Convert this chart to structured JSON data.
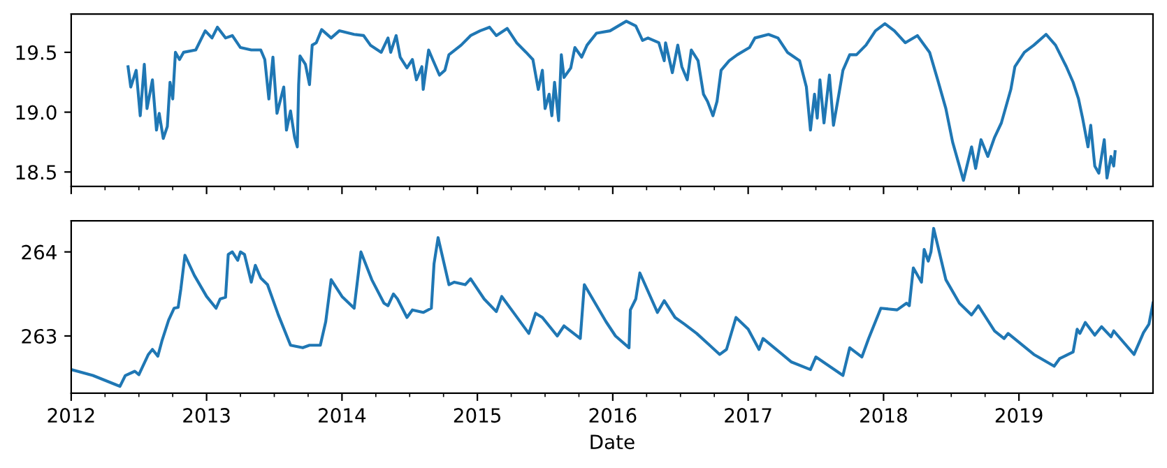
{
  "chart_data": [
    {
      "type": "line",
      "tick_labels": "y",
      "xlim": [
        2012,
        2019.99
      ],
      "ylim": [
        18.38,
        19.82
      ],
      "xticks": [
        2012,
        {
          "value": 2012.25,
          "label": null
        },
        {
          "value": 2012.5,
          "label": null
        },
        {
          "value": 2012.75,
          "label": null
        },
        2013,
        {
          "value": 2013.25,
          "label": null
        },
        {
          "value": 2013.5,
          "label": null
        },
        {
          "value": 2013.75,
          "label": null
        },
        2014,
        {
          "value": 2014.25,
          "label": null
        },
        {
          "value": 2014.5,
          "label": null
        },
        {
          "value": 2014.75,
          "label": null
        },
        2015,
        {
          "value": 2015.25,
          "label": null
        },
        {
          "value": 2015.5,
          "label": null
        },
        {
          "value": 2015.75,
          "label": null
        },
        2016,
        {
          "value": 2016.25,
          "label": null
        },
        {
          "value": 2016.5,
          "label": null
        },
        {
          "value": 2016.75,
          "label": null
        },
        2017,
        {
          "value": 2017.25,
          "label": null
        },
        {
          "value": 2017.5,
          "label": null
        },
        {
          "value": 2017.75,
          "label": null
        },
        2018,
        {
          "value": 2018.25,
          "label": null
        },
        {
          "value": 2018.5,
          "label": null
        },
        {
          "value": 2018.75,
          "label": null
        },
        2019,
        {
          "value": 2019.25,
          "label": null
        },
        {
          "value": 2019.5,
          "label": null
        },
        {
          "value": 2019.75,
          "label": null
        }
      ],
      "yticks": [
        18.5,
        {
          "value": 19.0,
          "label": "19.0"
        },
        19.5
      ],
      "series": [
        {
          "color": "#1f77b4",
          "x": [
            2012.42,
            2012.44,
            2012.48,
            2012.51,
            2012.54,
            2012.56,
            2012.6,
            2012.63,
            2012.65,
            2012.68,
            2012.71,
            2012.73,
            2012.75,
            2012.77,
            2012.8,
            2012.83,
            2012.92,
            2012.99,
            2013.04,
            2013.08,
            2013.14,
            2013.19,
            2013.25,
            2013.33,
            2013.4,
            2013.43,
            2013.46,
            2013.49,
            2013.52,
            2013.57,
            2013.59,
            2013.62,
            2013.65,
            2013.67,
            2013.68,
            2013.69,
            2013.73,
            2013.76,
            2013.78,
            2013.81,
            2013.85,
            2013.92,
            2013.98,
            2014.09,
            2014.16,
            2014.21,
            2014.29,
            2014.34,
            2014.36,
            2014.4,
            2014.43,
            2014.48,
            2014.52,
            2014.55,
            2014.59,
            2014.6,
            2014.64,
            2014.67,
            2014.72,
            2014.76,
            2014.79,
            2014.88,
            2014.95,
            2015.02,
            2015.09,
            2015.14,
            2015.22,
            2015.29,
            2015.36,
            2015.41,
            2015.45,
            2015.48,
            2015.5,
            2015.53,
            2015.55,
            2015.57,
            2015.6,
            2015.62,
            2015.64,
            2015.69,
            2015.72,
            2015.77,
            2015.81,
            2015.88,
            2015.98,
            2016.1,
            2016.17,
            2016.22,
            2016.26,
            2016.34,
            2016.38,
            2016.39,
            2016.44,
            2016.48,
            2016.51,
            2016.55,
            2016.58,
            2016.63,
            2016.67,
            2016.7,
            2016.74,
            2016.77,
            2016.8,
            2016.86,
            2016.92,
            2017.01,
            2017.05,
            2017.15,
            2017.22,
            2017.29,
            2017.38,
            2017.43,
            2017.46,
            2017.49,
            2017.51,
            2017.53,
            2017.56,
            2017.6,
            2017.63,
            2017.67,
            2017.7,
            2017.75,
            2017.8,
            2017.87,
            2017.94,
            2018.01,
            2018.08,
            2018.16,
            2018.25,
            2018.34,
            2018.4,
            2018.46,
            2018.51,
            2018.56,
            2018.59,
            2018.65,
            2018.68,
            2018.72,
            2018.77,
            2018.82,
            2018.87,
            2018.94,
            2018.97,
            2019.04,
            2019.11,
            2019.2,
            2019.27,
            2019.35,
            2019.4,
            2019.44,
            2019.47,
            2019.51,
            2019.53,
            2019.56,
            2019.59,
            2019.63,
            2019.65,
            2019.68,
            2019.7,
            2019.71
          ],
          "values": [
            19.38,
            19.21,
            19.35,
            18.97,
            19.4,
            19.03,
            19.27,
            18.85,
            18.99,
            18.78,
            18.88,
            19.25,
            19.11,
            19.5,
            19.44,
            19.5,
            19.52,
            19.68,
            19.62,
            19.71,
            19.62,
            19.64,
            19.54,
            19.52,
            19.52,
            19.44,
            19.11,
            19.46,
            18.99,
            19.21,
            18.85,
            19.01,
            18.79,
            18.71,
            19.23,
            19.47,
            19.4,
            19.23,
            19.56,
            19.58,
            19.69,
            19.62,
            19.68,
            19.65,
            19.64,
            19.56,
            19.5,
            19.62,
            19.5,
            19.64,
            19.46,
            19.37,
            19.44,
            19.27,
            19.38,
            19.19,
            19.52,
            19.44,
            19.31,
            19.35,
            19.48,
            19.56,
            19.64,
            19.68,
            19.71,
            19.64,
            19.7,
            19.58,
            19.5,
            19.44,
            19.19,
            19.35,
            19.03,
            19.15,
            18.97,
            19.25,
            18.93,
            19.48,
            19.29,
            19.37,
            19.54,
            19.46,
            19.56,
            19.66,
            19.68,
            19.76,
            19.72,
            19.6,
            19.62,
            19.58,
            19.43,
            19.58,
            19.33,
            19.56,
            19.38,
            19.27,
            19.52,
            19.43,
            19.15,
            19.09,
            18.97,
            19.09,
            19.35,
            19.43,
            19.48,
            19.54,
            19.62,
            19.65,
            19.62,
            19.5,
            19.43,
            19.21,
            18.85,
            19.15,
            18.95,
            19.27,
            18.91,
            19.31,
            18.89,
            19.15,
            19.35,
            19.48,
            19.48,
            19.56,
            19.68,
            19.74,
            19.68,
            19.58,
            19.64,
            19.5,
            19.27,
            19.03,
            18.75,
            18.55,
            18.43,
            18.71,
            18.53,
            18.77,
            18.63,
            18.79,
            18.91,
            19.19,
            19.38,
            19.5,
            19.56,
            19.65,
            19.56,
            19.38,
            19.25,
            19.11,
            18.95,
            18.71,
            18.89,
            18.55,
            18.49,
            18.77,
            18.45,
            18.63,
            18.55,
            18.67
          ]
        }
      ]
    },
    {
      "type": "line",
      "xlabel": "Date",
      "xlim": [
        2012,
        2019.99
      ],
      "ylim": [
        262.32,
        264.37
      ],
      "xticks": [
        2012,
        {
          "value": 2012.25,
          "label": null
        },
        {
          "value": 2012.5,
          "label": null
        },
        {
          "value": 2012.75,
          "label": null
        },
        2013,
        {
          "value": 2013.25,
          "label": null
        },
        {
          "value": 2013.5,
          "label": null
        },
        {
          "value": 2013.75,
          "label": null
        },
        2014,
        {
          "value": 2014.25,
          "label": null
        },
        {
          "value": 2014.5,
          "label": null
        },
        {
          "value": 2014.75,
          "label": null
        },
        2015,
        {
          "value": 2015.25,
          "label": null
        },
        {
          "value": 2015.5,
          "label": null
        },
        {
          "value": 2015.75,
          "label": null
        },
        2016,
        {
          "value": 2016.25,
          "label": null
        },
        {
          "value": 2016.5,
          "label": null
        },
        {
          "value": 2016.75,
          "label": null
        },
        2017,
        {
          "value": 2017.25,
          "label": null
        },
        {
          "value": 2017.5,
          "label": null
        },
        {
          "value": 2017.75,
          "label": null
        },
        2018,
        {
          "value": 2018.25,
          "label": null
        },
        {
          "value": 2018.5,
          "label": null
        },
        {
          "value": 2018.75,
          "label": null
        },
        2019,
        {
          "value": 2019.25,
          "label": null
        },
        {
          "value": 2019.5,
          "label": null
        },
        {
          "value": 2019.75,
          "label": null
        }
      ],
      "yticks": [
        263,
        264
      ],
      "series": [
        {
          "color": "#1f77b4",
          "x": [
            2012.0,
            2012.16,
            2012.33,
            2012.36,
            2012.4,
            2012.47,
            2012.5,
            2012.57,
            2012.6,
            2012.64,
            2012.67,
            2012.72,
            2012.76,
            2012.79,
            2012.81,
            2012.84,
            2012.91,
            2013.0,
            2013.07,
            2013.1,
            2013.14,
            2013.16,
            2013.19,
            2013.23,
            2013.25,
            2013.28,
            2013.33,
            2013.36,
            2013.4,
            2013.45,
            2013.53,
            2013.62,
            2013.71,
            2013.76,
            2013.84,
            2013.88,
            2013.92,
            2014.0,
            2014.09,
            2014.14,
            2014.22,
            2014.31,
            2014.34,
            2014.38,
            2014.41,
            2014.48,
            2014.52,
            2014.6,
            2014.66,
            2014.68,
            2014.71,
            2014.79,
            2014.83,
            2014.91,
            2014.95,
            2015.05,
            2015.14,
            2015.18,
            2015.28,
            2015.38,
            2015.43,
            2015.48,
            2015.59,
            2015.64,
            2015.76,
            2015.79,
            2015.95,
            2016.02,
            2016.12,
            2016.13,
            2016.17,
            2016.2,
            2016.33,
            2016.38,
            2016.46,
            2016.53,
            2016.62,
            2016.79,
            2016.84,
            2016.91,
            2017.0,
            2017.08,
            2017.11,
            2017.32,
            2017.46,
            2017.5,
            2017.7,
            2017.75,
            2017.84,
            2017.89,
            2017.98,
            2018.1,
            2018.17,
            2018.19,
            2018.22,
            2018.28,
            2018.3,
            2018.33,
            2018.35,
            2018.37,
            2018.46,
            2018.56,
            2018.65,
            2018.7,
            2018.82,
            2018.89,
            2018.92,
            2019.11,
            2019.26,
            2019.3,
            2019.4,
            2019.43,
            2019.45,
            2019.49,
            2019.56,
            2019.61,
            2019.68,
            2019.7,
            2019.85,
            2019.92,
            2019.96,
            2019.99
          ],
          "values": [
            262.6,
            262.53,
            262.42,
            262.4,
            262.53,
            262.58,
            262.54,
            262.78,
            262.84,
            262.76,
            262.94,
            263.19,
            263.33,
            263.34,
            263.56,
            263.96,
            263.72,
            263.47,
            263.33,
            263.44,
            263.46,
            263.97,
            264.0,
            263.9,
            264.0,
            263.97,
            263.64,
            263.84,
            263.69,
            263.61,
            263.25,
            262.89,
            262.86,
            262.89,
            262.89,
            263.17,
            263.67,
            263.47,
            263.33,
            264.0,
            263.67,
            263.39,
            263.36,
            263.5,
            263.44,
            263.22,
            263.31,
            263.28,
            263.33,
            263.86,
            264.17,
            263.61,
            263.64,
            263.61,
            263.68,
            263.44,
            263.29,
            263.47,
            263.25,
            263.03,
            263.27,
            263.22,
            263.0,
            263.12,
            262.97,
            263.61,
            263.17,
            263.0,
            262.86,
            263.31,
            263.44,
            263.75,
            263.28,
            263.42,
            263.22,
            263.14,
            263.03,
            262.78,
            262.84,
            263.22,
            263.08,
            262.84,
            262.97,
            262.69,
            262.6,
            262.75,
            262.53,
            262.86,
            262.75,
            262.97,
            263.33,
            263.31,
            263.39,
            263.36,
            263.81,
            263.64,
            264.03,
            263.89,
            264.0,
            264.28,
            263.67,
            263.39,
            263.25,
            263.36,
            263.06,
            262.97,
            263.03,
            262.78,
            262.64,
            262.73,
            262.81,
            263.08,
            263.03,
            263.16,
            263.01,
            263.11,
            262.99,
            263.06,
            262.78,
            263.04,
            263.14,
            263.39
          ]
        }
      ]
    }
  ]
}
